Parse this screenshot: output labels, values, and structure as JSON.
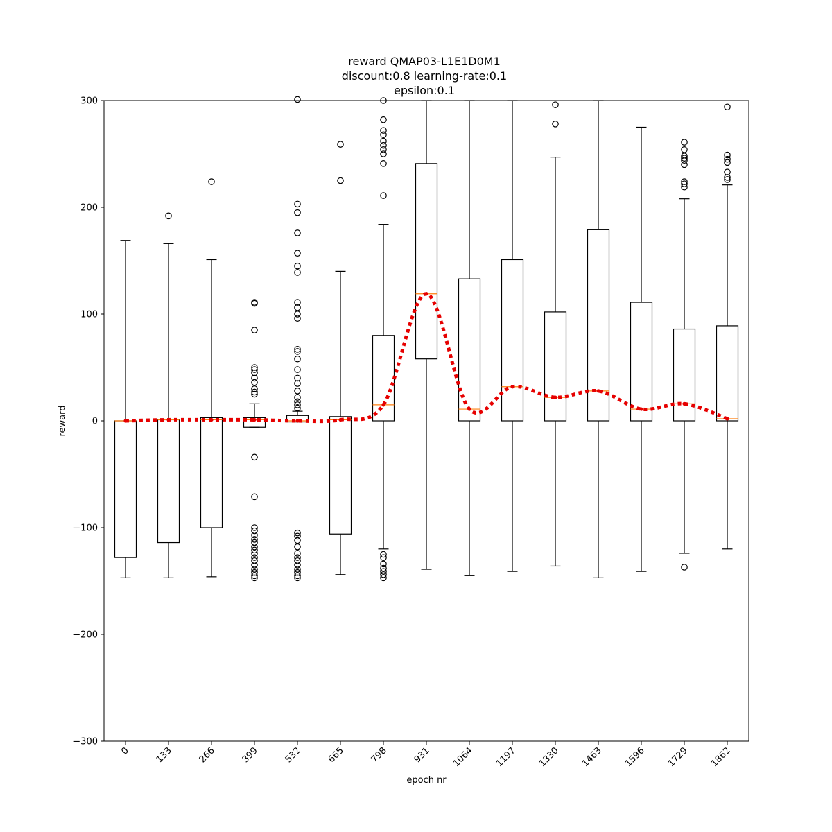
{
  "chart_data": {
    "type": "box",
    "title_lines": [
      "reward QMAP03-L1E1D0M1",
      "discount:0.8 learning-rate:0.1",
      "epsilon:0.1"
    ],
    "xlabel": "epoch nr",
    "ylabel": "reward",
    "ylim": [
      -300,
      300
    ],
    "yticks": [
      -300,
      -200,
      -100,
      0,
      100,
      200,
      300
    ],
    "grid": false,
    "categories": [
      "0",
      "133",
      "266",
      "399",
      "532",
      "665",
      "798",
      "931",
      "1064",
      "1197",
      "1330",
      "1463",
      "1596",
      "1729",
      "1862"
    ],
    "boxes": [
      {
        "whislo": -147,
        "q1": -128,
        "med": 0,
        "q3": 0,
        "whishi": 169,
        "fliers": []
      },
      {
        "whislo": -147,
        "q1": -114,
        "med": 1,
        "q3": 1,
        "whishi": 166,
        "fliers": [
          192
        ]
      },
      {
        "whislo": -146,
        "q1": -100,
        "med": 1,
        "q3": 3,
        "whishi": 151,
        "fliers": [
          224
        ]
      },
      {
        "whislo": -6,
        "q1": -6,
        "med": 1,
        "q3": 3,
        "whishi": 16,
        "fliers": [
          110,
          111,
          85,
          50,
          48,
          45,
          40,
          36,
          30,
          27,
          25,
          -34,
          -71,
          -100,
          -103,
          -107,
          -111,
          -114,
          -118,
          -121,
          -124,
          -128,
          -131,
          -135,
          -139,
          -142,
          -145,
          -147
        ]
      },
      {
        "whislo": -1,
        "q1": -1,
        "med": 0,
        "q3": 5,
        "whishi": 9,
        "fliers": [
          203,
          195,
          176,
          157,
          145,
          139,
          111,
          106,
          100,
          96,
          67,
          65,
          58,
          48,
          40,
          35,
          28,
          22,
          18,
          15,
          12,
          -105,
          -108,
          -112,
          -118,
          -124,
          -128,
          -131,
          -135,
          -139,
          -142,
          -145,
          -147,
          301
        ]
      },
      {
        "whislo": -144,
        "q1": -106,
        "med": 1,
        "q3": 4,
        "whishi": 140,
        "fliers": [
          259,
          225
        ]
      },
      {
        "whislo": -120,
        "q1": 0,
        "med": 15,
        "q3": 80,
        "whishi": 184,
        "fliers": [
          300,
          282,
          272,
          268,
          262,
          258,
          254,
          250,
          241,
          211,
          -125,
          -128,
          -134,
          -138,
          -141,
          -144,
          -147
        ]
      },
      {
        "whislo": -139,
        "q1": 58,
        "med": 119,
        "q3": 241,
        "whishi": 300,
        "fliers": []
      },
      {
        "whislo": -145,
        "q1": 0,
        "med": 11,
        "q3": 133,
        "whishi": 300,
        "fliers": []
      },
      {
        "whislo": -141,
        "q1": 0,
        "med": 32,
        "q3": 151,
        "whishi": 300,
        "fliers": []
      },
      {
        "whislo": -136,
        "q1": 0,
        "med": 22,
        "q3": 102,
        "whishi": 247,
        "fliers": [
          296,
          278
        ]
      },
      {
        "whislo": -147,
        "q1": 0,
        "med": 28,
        "q3": 179,
        "whishi": 300,
        "fliers": []
      },
      {
        "whislo": -141,
        "q1": 0,
        "med": 11,
        "q3": 111,
        "whishi": 275,
        "fliers": []
      },
      {
        "whislo": -124,
        "q1": 0,
        "med": 16,
        "q3": 86,
        "whishi": 208,
        "fliers": [
          261,
          254,
          248,
          246,
          244,
          240,
          224,
          222,
          219,
          -137
        ]
      },
      {
        "whislo": -120,
        "q1": 0,
        "med": 2,
        "q3": 89,
        "whishi": 221,
        "fliers": [
          294,
          249,
          245,
          242,
          233,
          228,
          226
        ]
      }
    ],
    "median_line": {
      "color": "#e60000",
      "style": "dotted",
      "values": [
        0,
        1,
        1,
        1,
        0,
        1,
        15,
        119,
        11,
        32,
        22,
        28,
        11,
        16,
        2
      ]
    },
    "colors": {
      "box": "#000000",
      "median": "#ff7f0e",
      "trend": "#e60000"
    }
  }
}
